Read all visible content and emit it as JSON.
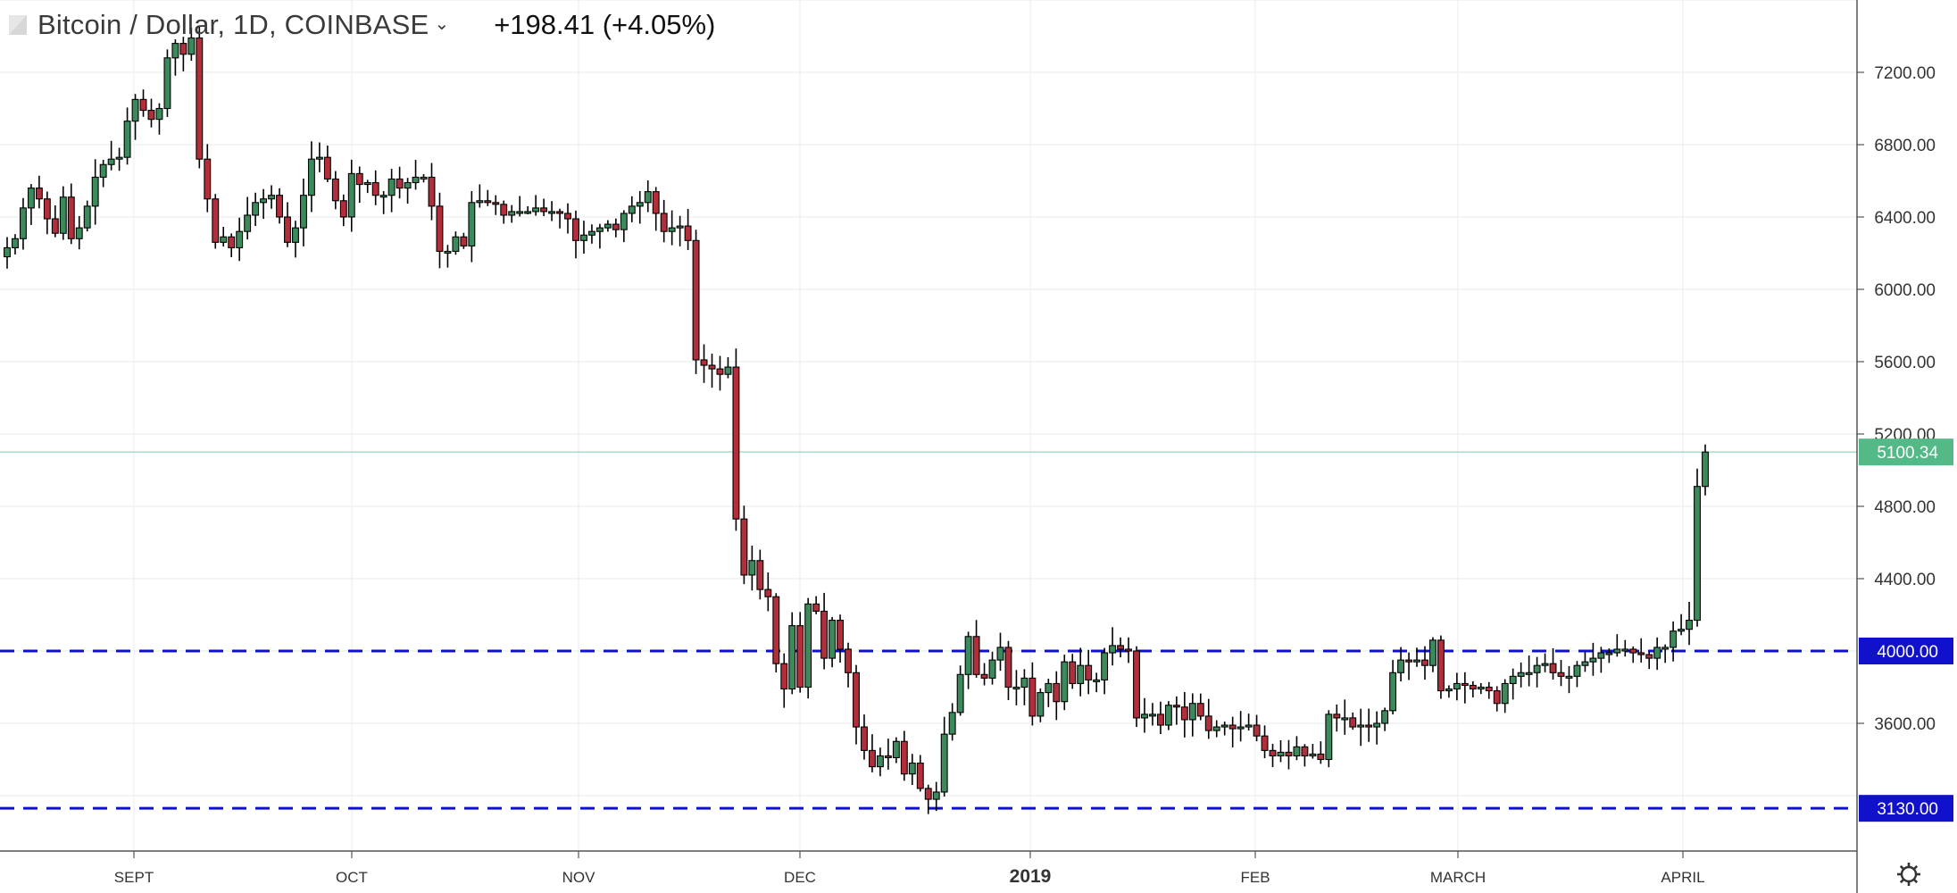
{
  "header": {
    "title": "Bitcoin / Dollar, 1D, COINBASE",
    "change": "+198.41 (+4.05%)",
    "symbol_icon": "flag-icon",
    "dropdown_icon": "chevron-down-icon"
  },
  "footer": {
    "settings_icon": "gear-icon"
  },
  "chart_data": {
    "type": "candlestick",
    "x_labels": [
      "SEPT",
      "OCT",
      "NOV",
      "DEC",
      "2019",
      "FEB",
      "MARCH",
      "APRIL"
    ],
    "y_ticks": [
      "7200.00",
      "6800.00",
      "6400.00",
      "6000.00",
      "5600.00",
      "5200.00",
      "4800.00",
      "4400.00",
      "3600.00"
    ],
    "y_range": [
      3050,
      7600
    ],
    "grid": true,
    "colors": {
      "up": "#3c8a5c",
      "down": "#b12e3a",
      "wick": "#000000",
      "last_price": "#53b987",
      "level": "#1111cc"
    },
    "last_price": {
      "value": 5100.34,
      "label": "5100.34"
    },
    "horizontal_levels": [
      {
        "value": 4000.0,
        "label": "4000.00"
      },
      {
        "value": 3130.0,
        "label": "3130.00"
      }
    ],
    "approx_closes": [
      6230,
      6280,
      6450,
      6560,
      6500,
      6390,
      6310,
      6510,
      6280,
      6340,
      6460,
      6620,
      6690,
      6720,
      6730,
      6930,
      7050,
      6990,
      6940,
      7000,
      7280,
      7360,
      7300,
      7390,
      6720,
      6500,
      6260,
      6290,
      6230,
      6320,
      6410,
      6480,
      6500,
      6520,
      6400,
      6260,
      6340,
      6520,
      6720,
      6730,
      6610,
      6490,
      6400,
      6640,
      6580,
      6590,
      6520,
      6520,
      6610,
      6560,
      6590,
      6620,
      6620,
      6460,
      6210,
      6210,
      6290,
      6240,
      6480,
      6490,
      6480,
      6470,
      6410,
      6430,
      6430,
      6430,
      6450,
      6430,
      6430,
      6420,
      6390,
      6270,
      6300,
      6320,
      6340,
      6360,
      6330,
      6420,
      6460,
      6480,
      6540,
      6420,
      6320,
      6340,
      6350,
      6270,
      5610,
      5580,
      5560,
      5530,
      5570,
      4730,
      4420,
      4500,
      4340,
      4300,
      3930,
      3790,
      4140,
      3800,
      4260,
      4220,
      3960,
      4170,
      4010,
      3880,
      3580,
      3450,
      3360,
      3420,
      3410,
      3500,
      3320,
      3380,
      3240,
      3180,
      3220,
      3540,
      3660,
      3870,
      4080,
      3870,
      3850,
      3950,
      4020,
      3800,
      3800,
      3850,
      3640,
      3770,
      3820,
      3720,
      3940,
      3820,
      3920,
      3840,
      3840,
      3990,
      4030,
      4010,
      4000,
      3630,
      3650,
      3650,
      3590,
      3700,
      3690,
      3620,
      3710,
      3640,
      3560,
      3580,
      3590,
      3570,
      3580,
      3590,
      3530,
      3450,
      3420,
      3440,
      3420,
      3470,
      3420,
      3430,
      3400,
      3650,
      3630,
      3630,
      3580,
      3590,
      3580,
      3600,
      3670,
      3880,
      3950,
      3940,
      3950,
      3920,
      4060,
      3780,
      3790,
      3820,
      3810,
      3790,
      3800,
      3780,
      3710,
      3820,
      3860,
      3880,
      3880,
      3920,
      3930,
      3880,
      3860,
      3860,
      3920,
      3940,
      3960,
      3990,
      3990,
      4010,
      4010,
      3990,
      3980,
      3960,
      4020,
      4020,
      4110,
      4120,
      4170,
      4910,
      5100
    ]
  }
}
